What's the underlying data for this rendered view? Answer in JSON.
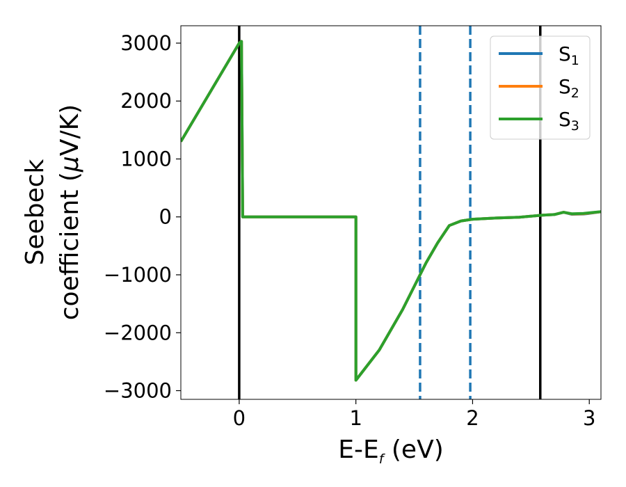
{
  "chart_data": {
    "type": "line",
    "xlabel": "E-E",
    "xlabel_sub": "f",
    "xlabel_unit": " (eV)",
    "ylabel_line1": "Seebeck",
    "ylabel_line2_pre": "coefficient  (",
    "ylabel_mu": "μ",
    "ylabel_line2_post": "V/K)",
    "xlim": [
      -0.5,
      3.1
    ],
    "ylim": [
      -3150,
      3300
    ],
    "x_ticks": [
      0,
      1,
      2,
      3
    ],
    "x_tick_labels": [
      "0",
      "1",
      "2",
      "3"
    ],
    "y_ticks": [
      -3000,
      -2000,
      -1000,
      0,
      1000,
      2000,
      3000
    ],
    "y_tick_labels": [
      "−3000",
      "−2000",
      "−1000",
      "0",
      "1000",
      "2000",
      "3000"
    ],
    "grid": false,
    "legend_position": "top-right",
    "series": [
      {
        "name": "S",
        "sub": "1",
        "color": "#1f77b4",
        "points": [
          [
            -0.5,
            1300
          ],
          [
            0,
            3000
          ],
          [
            0.02,
            3030
          ],
          [
            0.03,
            0
          ],
          [
            1.0,
            0
          ],
          [
            1.0,
            -2820
          ],
          [
            1.2,
            -2300
          ],
          [
            1.4,
            -1600
          ],
          [
            1.55,
            -1000
          ],
          [
            1.6,
            -800
          ],
          [
            1.7,
            -450
          ],
          [
            1.8,
            -150
          ],
          [
            1.9,
            -70
          ],
          [
            2.0,
            -40
          ],
          [
            2.2,
            -20
          ],
          [
            2.4,
            -5
          ],
          [
            2.6,
            30
          ],
          [
            2.7,
            40
          ],
          [
            2.78,
            80
          ],
          [
            2.85,
            45
          ],
          [
            2.95,
            50
          ],
          [
            3.0,
            60
          ],
          [
            3.1,
            90
          ]
        ]
      },
      {
        "name": "S",
        "sub": "2",
        "color": "#ff7f0e",
        "points": [
          [
            -0.5,
            1300
          ],
          [
            0,
            3000
          ],
          [
            0.02,
            3030
          ],
          [
            0.03,
            0
          ],
          [
            1.0,
            0
          ],
          [
            1.0,
            -2820
          ],
          [
            1.2,
            -2300
          ],
          [
            1.4,
            -1600
          ],
          [
            1.55,
            -1000
          ],
          [
            1.6,
            -800
          ],
          [
            1.7,
            -450
          ],
          [
            1.8,
            -150
          ],
          [
            1.9,
            -70
          ],
          [
            2.0,
            -40
          ],
          [
            2.2,
            -20
          ],
          [
            2.4,
            -5
          ],
          [
            2.6,
            30
          ],
          [
            2.7,
            40
          ],
          [
            2.78,
            80
          ],
          [
            2.85,
            50
          ],
          [
            2.95,
            55
          ],
          [
            3.0,
            65
          ],
          [
            3.1,
            90
          ]
        ]
      },
      {
        "name": "S",
        "sub": "3",
        "color": "#2ca02c",
        "points": [
          [
            -0.5,
            1300
          ],
          [
            0,
            3000
          ],
          [
            0.02,
            3030
          ],
          [
            0.03,
            0
          ],
          [
            1.0,
            0
          ],
          [
            1.0,
            -2820
          ],
          [
            1.2,
            -2300
          ],
          [
            1.4,
            -1600
          ],
          [
            1.55,
            -1000
          ],
          [
            1.6,
            -800
          ],
          [
            1.7,
            -450
          ],
          [
            1.8,
            -150
          ],
          [
            1.9,
            -70
          ],
          [
            2.0,
            -40
          ],
          [
            2.2,
            -20
          ],
          [
            2.4,
            -5
          ],
          [
            2.6,
            30
          ],
          [
            2.7,
            40
          ],
          [
            2.78,
            80
          ],
          [
            2.85,
            55
          ],
          [
            2.95,
            60
          ],
          [
            3.0,
            70
          ],
          [
            3.1,
            90
          ]
        ]
      }
    ],
    "vlines": [
      {
        "x": 0,
        "style": "solid",
        "color": "#000000"
      },
      {
        "x": 2.58,
        "style": "solid",
        "color": "#000000"
      },
      {
        "x": 1.55,
        "style": "dashed",
        "color": "#1f77b4"
      },
      {
        "x": 1.98,
        "style": "dashed",
        "color": "#1f77b4"
      }
    ]
  }
}
